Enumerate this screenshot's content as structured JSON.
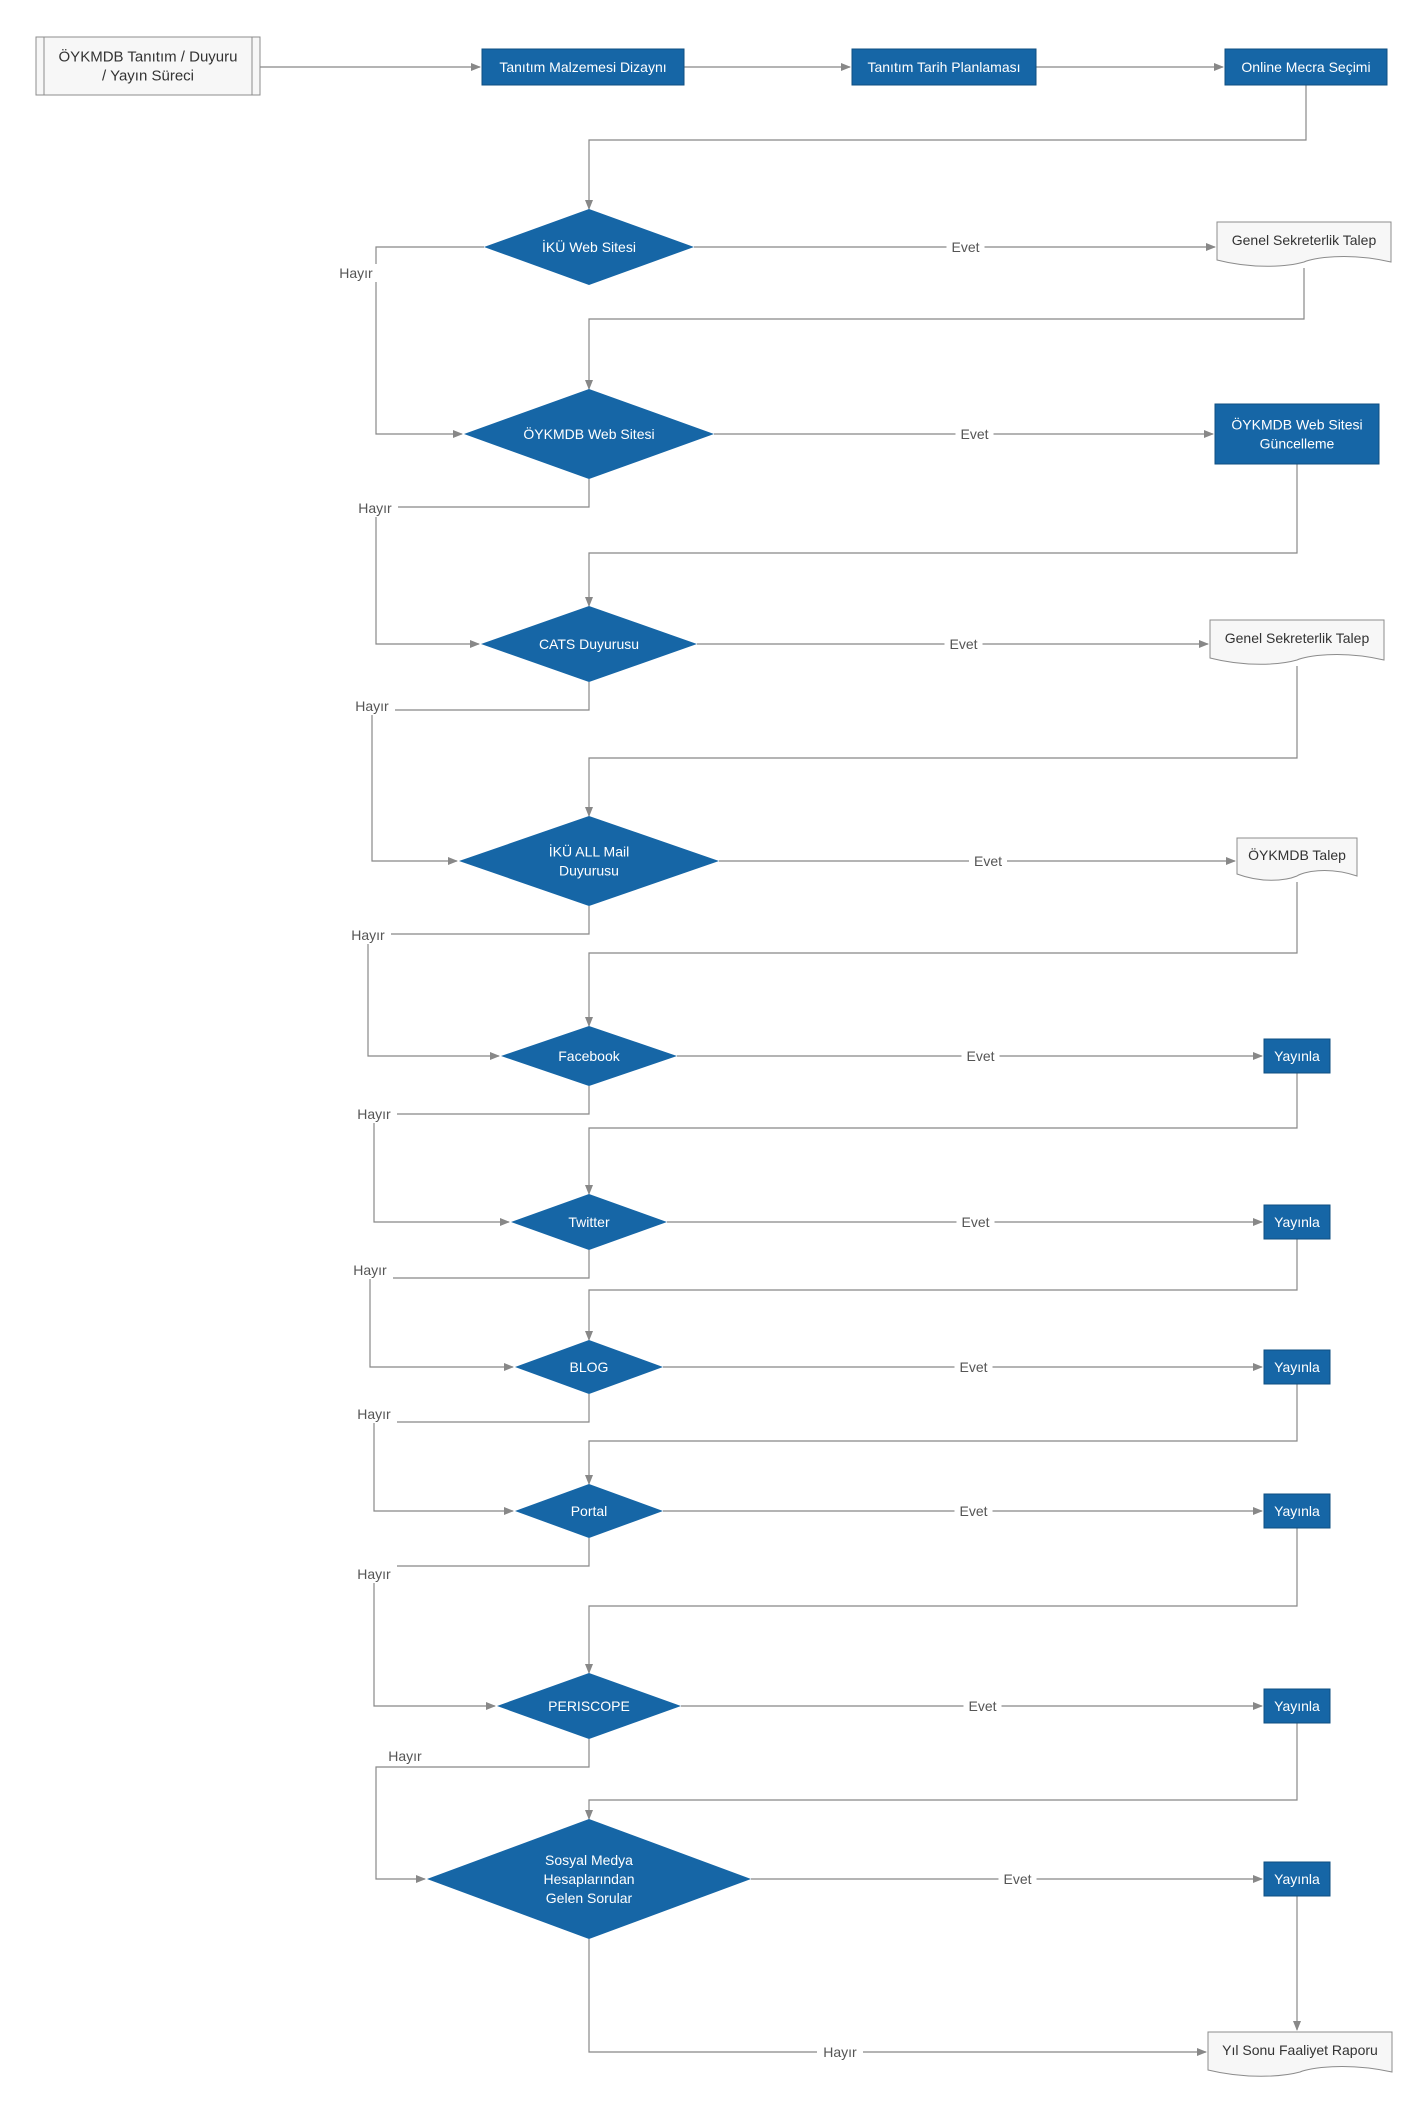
{
  "colors": {
    "process_fill": "#1666a6",
    "process_text": "#ffffff",
    "decision_fill": "#1666a6",
    "document_fill": "#f7f7f7",
    "document_stroke": "#8c8c8c",
    "connector": "#888888",
    "label_text": "#555555"
  },
  "start": [
    "ÖYKMDB Tanıtım / Duyuru",
    "/ Yayın Süreci"
  ],
  "process": {
    "design": "Tanıtım Malzemesi Dizaynı",
    "date_plan": "Tanıtım Tarih Planlaması",
    "media_select": "Online Mecra Seçimi",
    "website_update": [
      "ÖYKMDB Web Sitesi",
      "Güncelleme"
    ]
  },
  "documents": {
    "gs_request_1": "Genel Sekreterlik Talep",
    "gs_request_2": "Genel Sekreterlik Talep",
    "oykmdb_request": "ÖYKMDB Talep",
    "annual_report": "Yıl Sonu Faaliyet Raporu"
  },
  "decisions": {
    "iku_web": [
      "İKÜ Web Sitesi"
    ],
    "oykmdb_web": [
      "ÖYKMDB Web Sitesi"
    ],
    "cats": [
      "CATS Duyurusu"
    ],
    "iku_mail": [
      "İKÜ ALL Mail",
      "Duyurusu"
    ],
    "facebook": [
      "Facebook"
    ],
    "twitter": [
      "Twitter"
    ],
    "blog": [
      "BLOG"
    ],
    "portal": [
      "Portal"
    ],
    "periscope": [
      "PERISCOPE"
    ],
    "social": [
      "Sosyal Medya",
      "Hesaplarından",
      "Gelen Sorular"
    ]
  },
  "publish_label": "Yayınla",
  "yes_label": "Evet",
  "no_label": "Hayır"
}
